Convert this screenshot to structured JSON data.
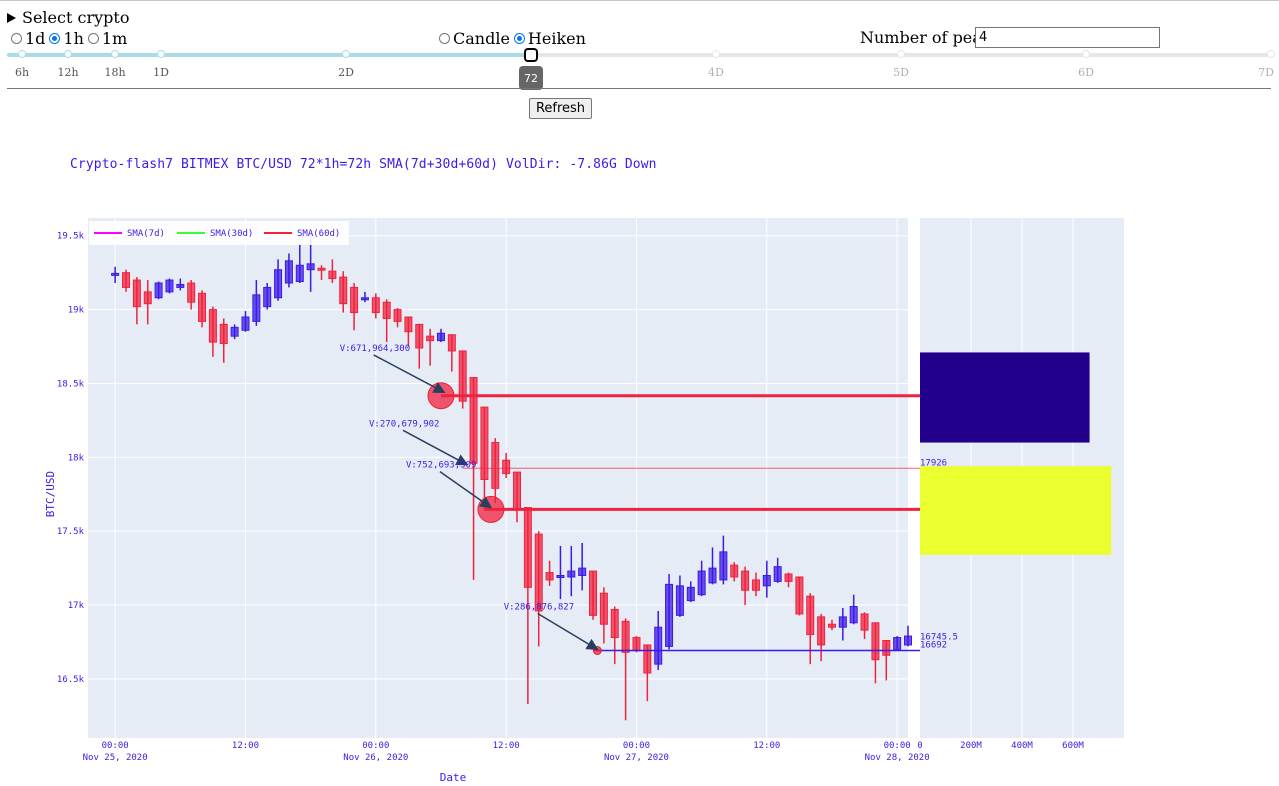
{
  "controls": {
    "select_crypto_label": "Select crypto",
    "interval_options": [
      {
        "label": "1d",
        "selected": false
      },
      {
        "label": "1h",
        "selected": true
      },
      {
        "label": "1m",
        "selected": false
      }
    ],
    "chart_type_options": [
      {
        "label": "Candle",
        "selected": false
      },
      {
        "label": "Heiken",
        "selected": true
      }
    ],
    "peaks_label": "Number of peaks",
    "peaks_value": "4",
    "slider": {
      "value_label": "72",
      "value_fraction": 0.41,
      "marks": [
        "6h",
        "12h",
        "18h",
        "1D",
        "2D",
        "4D",
        "5D",
        "6D",
        "7D"
      ]
    },
    "refresh_label": "Refresh"
  },
  "colors": {
    "accent_text": "#3d1ae6",
    "bull": "#3d1ae6",
    "bear": "#f0223d",
    "plot_bg": "#e5ecf6",
    "peak_line": "#f0223d",
    "support_line": "#3d1ae6",
    "volume_bar_1": "#22008b",
    "volume_bar_2": "#ebff30"
  },
  "chart_data": {
    "type": "candlestick",
    "title": "Crypto-flash7 BITMEX BTC/USD 72*1h=72h SMA(7d+30d+60d) VolDir: -7.86G Down",
    "xlabel": "Date",
    "ylabel": "BTC/USD",
    "legend": [
      "SMA(7d)",
      "SMA(30d)",
      "SMA(60d)"
    ],
    "legend_colors": [
      "#ff00ff",
      "#33ff33",
      "#f0223d"
    ],
    "legend_position": "top-left",
    "x_ticks": [
      {
        "t": 0,
        "l1": "00:00",
        "l2": "Nov 25, 2020"
      },
      {
        "t": 12,
        "l1": "12:00",
        "l2": ""
      },
      {
        "t": 24,
        "l1": "00:00",
        "l2": "Nov 26, 2020"
      },
      {
        "t": 36,
        "l1": "12:00",
        "l2": ""
      },
      {
        "t": 48,
        "l1": "00:00",
        "l2": "Nov 27, 2020"
      },
      {
        "t": 60,
        "l1": "12:00",
        "l2": ""
      },
      {
        "t": 72,
        "l1": "00:00",
        "l2": "Nov 28, 2020"
      }
    ],
    "y_ticks": [
      16500,
      17000,
      17500,
      18000,
      18500,
      19000,
      19500
    ],
    "y_tick_labels": [
      "16.5k",
      "17k",
      "17.5k",
      "18k",
      "18.5k",
      "19k",
      "19.5k"
    ],
    "ylim": [
      16100,
      19620
    ],
    "xlim": [
      -2.5,
      73
    ],
    "candles": [
      {
        "o": 19235,
        "h": 19290,
        "l": 19180,
        "c": 19245,
        "d": "up"
      },
      {
        "o": 19250,
        "h": 19270,
        "l": 19120,
        "c": 19150,
        "d": "down"
      },
      {
        "o": 19200,
        "h": 19220,
        "l": 18900,
        "c": 19020,
        "d": "down"
      },
      {
        "o": 19120,
        "h": 19200,
        "l": 18900,
        "c": 19040,
        "d": "down"
      },
      {
        "o": 19080,
        "h": 19190,
        "l": 19070,
        "c": 19180,
        "d": "up"
      },
      {
        "o": 19120,
        "h": 19210,
        "l": 19110,
        "c": 19200,
        "d": "up"
      },
      {
        "o": 19150,
        "h": 19210,
        "l": 19130,
        "c": 19170,
        "d": "up"
      },
      {
        "o": 19180,
        "h": 19200,
        "l": 19000,
        "c": 19050,
        "d": "down"
      },
      {
        "o": 19110,
        "h": 19130,
        "l": 18880,
        "c": 18920,
        "d": "down"
      },
      {
        "o": 19000,
        "h": 19020,
        "l": 18680,
        "c": 18780,
        "d": "down"
      },
      {
        "o": 18900,
        "h": 18940,
        "l": 18640,
        "c": 18770,
        "d": "down"
      },
      {
        "o": 18820,
        "h": 18900,
        "l": 18800,
        "c": 18880,
        "d": "up"
      },
      {
        "o": 18860,
        "h": 18990,
        "l": 18850,
        "c": 18950,
        "d": "up"
      },
      {
        "o": 18920,
        "h": 19200,
        "l": 18890,
        "c": 19100,
        "d": "up"
      },
      {
        "o": 19020,
        "h": 19180,
        "l": 19000,
        "c": 19150,
        "d": "up"
      },
      {
        "o": 19080,
        "h": 19340,
        "l": 19060,
        "c": 19270,
        "d": "up"
      },
      {
        "o": 19180,
        "h": 19380,
        "l": 19150,
        "c": 19330,
        "d": "up"
      },
      {
        "o": 19190,
        "h": 19440,
        "l": 19180,
        "c": 19300,
        "d": "up"
      },
      {
        "o": 19270,
        "h": 19520,
        "l": 19120,
        "c": 19310,
        "d": "up"
      },
      {
        "o": 19270,
        "h": 19300,
        "l": 19200,
        "c": 19280,
        "d": "down"
      },
      {
        "o": 19260,
        "h": 19340,
        "l": 19180,
        "c": 19210,
        "d": "down"
      },
      {
        "o": 19220,
        "h": 19260,
        "l": 18980,
        "c": 19040,
        "d": "down"
      },
      {
        "o": 19150,
        "h": 19180,
        "l": 18860,
        "c": 18980,
        "d": "down"
      },
      {
        "o": 19080,
        "h": 19120,
        "l": 19050,
        "c": 19070,
        "d": "up"
      },
      {
        "o": 19080,
        "h": 19110,
        "l": 18940,
        "c": 18980,
        "d": "down"
      },
      {
        "o": 19050,
        "h": 19070,
        "l": 18780,
        "c": 18940,
        "d": "down"
      },
      {
        "o": 19000,
        "h": 19010,
        "l": 18880,
        "c": 18920,
        "d": "down"
      },
      {
        "o": 18950,
        "h": 18950,
        "l": 18750,
        "c": 18850,
        "d": "down"
      },
      {
        "o": 18900,
        "h": 18900,
        "l": 18600,
        "c": 18740,
        "d": "down"
      },
      {
        "o": 18820,
        "h": 18870,
        "l": 18620,
        "c": 18790,
        "d": "down"
      },
      {
        "o": 18790,
        "h": 18870,
        "l": 18780,
        "c": 18840,
        "d": "up"
      },
      {
        "o": 18830,
        "h": 18830,
        "l": 18580,
        "c": 18720,
        "d": "down"
      },
      {
        "o": 18720,
        "h": 18720,
        "l": 18330,
        "c": 18380,
        "d": "down"
      },
      {
        "o": 18540,
        "h": 18540,
        "l": 17170,
        "c": 17960,
        "d": "down"
      },
      {
        "o": 18340,
        "h": 18340,
        "l": 17650,
        "c": 17850,
        "d": "down"
      },
      {
        "o": 18100,
        "h": 18130,
        "l": 17690,
        "c": 17790,
        "d": "down"
      },
      {
        "o": 17980,
        "h": 18030,
        "l": 17860,
        "c": 17890,
        "d": "down"
      },
      {
        "o": 17900,
        "h": 17900,
        "l": 17560,
        "c": 17650,
        "d": "down"
      },
      {
        "o": 17660,
        "h": 17660,
        "l": 16330,
        "c": 17120,
        "d": "down"
      },
      {
        "o": 17480,
        "h": 17500,
        "l": 16720,
        "c": 16960,
        "d": "down"
      },
      {
        "o": 17220,
        "h": 17300,
        "l": 17130,
        "c": 17170,
        "d": "down"
      },
      {
        "o": 17190,
        "h": 17400,
        "l": 17040,
        "c": 17200,
        "d": "up"
      },
      {
        "o": 17190,
        "h": 17400,
        "l": 17060,
        "c": 17230,
        "d": "up"
      },
      {
        "o": 17200,
        "h": 17420,
        "l": 17100,
        "c": 17250,
        "d": "up"
      },
      {
        "o": 17230,
        "h": 17230,
        "l": 16900,
        "c": 16930,
        "d": "down"
      },
      {
        "o": 17080,
        "h": 17120,
        "l": 16740,
        "c": 16870,
        "d": "down"
      },
      {
        "o": 16970,
        "h": 16990,
        "l": 16600,
        "c": 16780,
        "d": "down"
      },
      {
        "o": 16890,
        "h": 16910,
        "l": 16220,
        "c": 16680,
        "d": "down"
      },
      {
        "o": 16780,
        "h": 16790,
        "l": 16680,
        "c": 16690,
        "d": "down"
      },
      {
        "o": 16730,
        "h": 16730,
        "l": 16350,
        "c": 16540,
        "d": "down"
      },
      {
        "o": 16600,
        "h": 16960,
        "l": 16560,
        "c": 16850,
        "d": "up"
      },
      {
        "o": 16720,
        "h": 17210,
        "l": 16700,
        "c": 17140,
        "d": "up"
      },
      {
        "o": 16930,
        "h": 17200,
        "l": 16920,
        "c": 17130,
        "d": "up"
      },
      {
        "o": 17030,
        "h": 17160,
        "l": 17020,
        "c": 17120,
        "d": "up"
      },
      {
        "o": 17070,
        "h": 17300,
        "l": 17060,
        "c": 17230,
        "d": "up"
      },
      {
        "o": 17150,
        "h": 17390,
        "l": 17140,
        "c": 17250,
        "d": "up"
      },
      {
        "o": 17170,
        "h": 17470,
        "l": 17140,
        "c": 17360,
        "d": "up"
      },
      {
        "o": 17270,
        "h": 17290,
        "l": 17160,
        "c": 17190,
        "d": "down"
      },
      {
        "o": 17230,
        "h": 17260,
        "l": 17000,
        "c": 17100,
        "d": "down"
      },
      {
        "o": 17170,
        "h": 17220,
        "l": 17060,
        "c": 17100,
        "d": "down"
      },
      {
        "o": 17130,
        "h": 17300,
        "l": 17050,
        "c": 17200,
        "d": "up"
      },
      {
        "o": 17160,
        "h": 17320,
        "l": 17150,
        "c": 17260,
        "d": "up"
      },
      {
        "o": 17210,
        "h": 17220,
        "l": 17120,
        "c": 17160,
        "d": "down"
      },
      {
        "o": 17190,
        "h": 17190,
        "l": 16930,
        "c": 16940,
        "d": "down"
      },
      {
        "o": 17060,
        "h": 17080,
        "l": 16600,
        "c": 16800,
        "d": "down"
      },
      {
        "o": 16920,
        "h": 16940,
        "l": 16620,
        "c": 16730,
        "d": "down"
      },
      {
        "o": 16870,
        "h": 16900,
        "l": 16830,
        "c": 16850,
        "d": "down"
      },
      {
        "o": 16850,
        "h": 16980,
        "l": 16760,
        "c": 16920,
        "d": "up"
      },
      {
        "o": 16880,
        "h": 17070,
        "l": 16870,
        "c": 16990,
        "d": "up"
      },
      {
        "o": 16940,
        "h": 16950,
        "l": 16770,
        "c": 16830,
        "d": "down"
      },
      {
        "o": 16880,
        "h": 16880,
        "l": 16470,
        "c": 16630,
        "d": "down"
      },
      {
        "o": 16760,
        "h": 16760,
        "l": 16490,
        "c": 16660,
        "d": "down"
      },
      {
        "o": 16700,
        "h": 16790,
        "l": 16700,
        "c": 16780,
        "d": "up"
      },
      {
        "o": 16730,
        "h": 16860,
        "l": 16720,
        "c": 16790,
        "d": "up"
      }
    ],
    "peak_lines": [
      {
        "value": 18417,
        "label": "18417",
        "width": "thick",
        "start_t": 30
      },
      {
        "value": 17926,
        "label": "17926",
        "width": "thin",
        "start_t": 32
      },
      {
        "value": 17647.5,
        "label": "17647.5",
        "width": "thick",
        "start_t": 34
      },
      {
        "value": 16692,
        "label": "16692",
        "width": "blue",
        "start_t": 44
      },
      {
        "value": 16745.5,
        "label": "16745.5",
        "width": "none",
        "start_t": 71
      }
    ],
    "peak_markers": [
      {
        "t": 30,
        "y": 18417
      },
      {
        "t": 34.6,
        "y": 17647.5
      },
      {
        "t": 44.4,
        "y": 16692
      }
    ],
    "volume_annotations": [
      {
        "text": "V:671,964,300",
        "t": 22.7,
        "y": 18720,
        "tx": 30.3,
        "ty": 18440
      },
      {
        "text": "V:270,679,902",
        "t": 25.4,
        "y": 18210,
        "tx": 32.4,
        "ty": 17950
      },
      {
        "text": "V:752,693,509",
        "t": 28.8,
        "y": 17930,
        "tx": 34.6,
        "ty": 17660
      },
      {
        "text": "V:286,876,827",
        "t": 37.8,
        "y": 16970,
        "tx": 44.4,
        "ty": 16700
      }
    ],
    "volume_profile": {
      "x_ticks": [
        "0",
        "200M",
        "400M",
        "600M"
      ],
      "x_tick_values": [
        0,
        200,
        400,
        600
      ],
      "xmax": 800,
      "bars": [
        {
          "from": 18100,
          "to": 18710,
          "value": 665
        },
        {
          "from": 17340,
          "to": 17940,
          "value": 750
        }
      ]
    }
  }
}
